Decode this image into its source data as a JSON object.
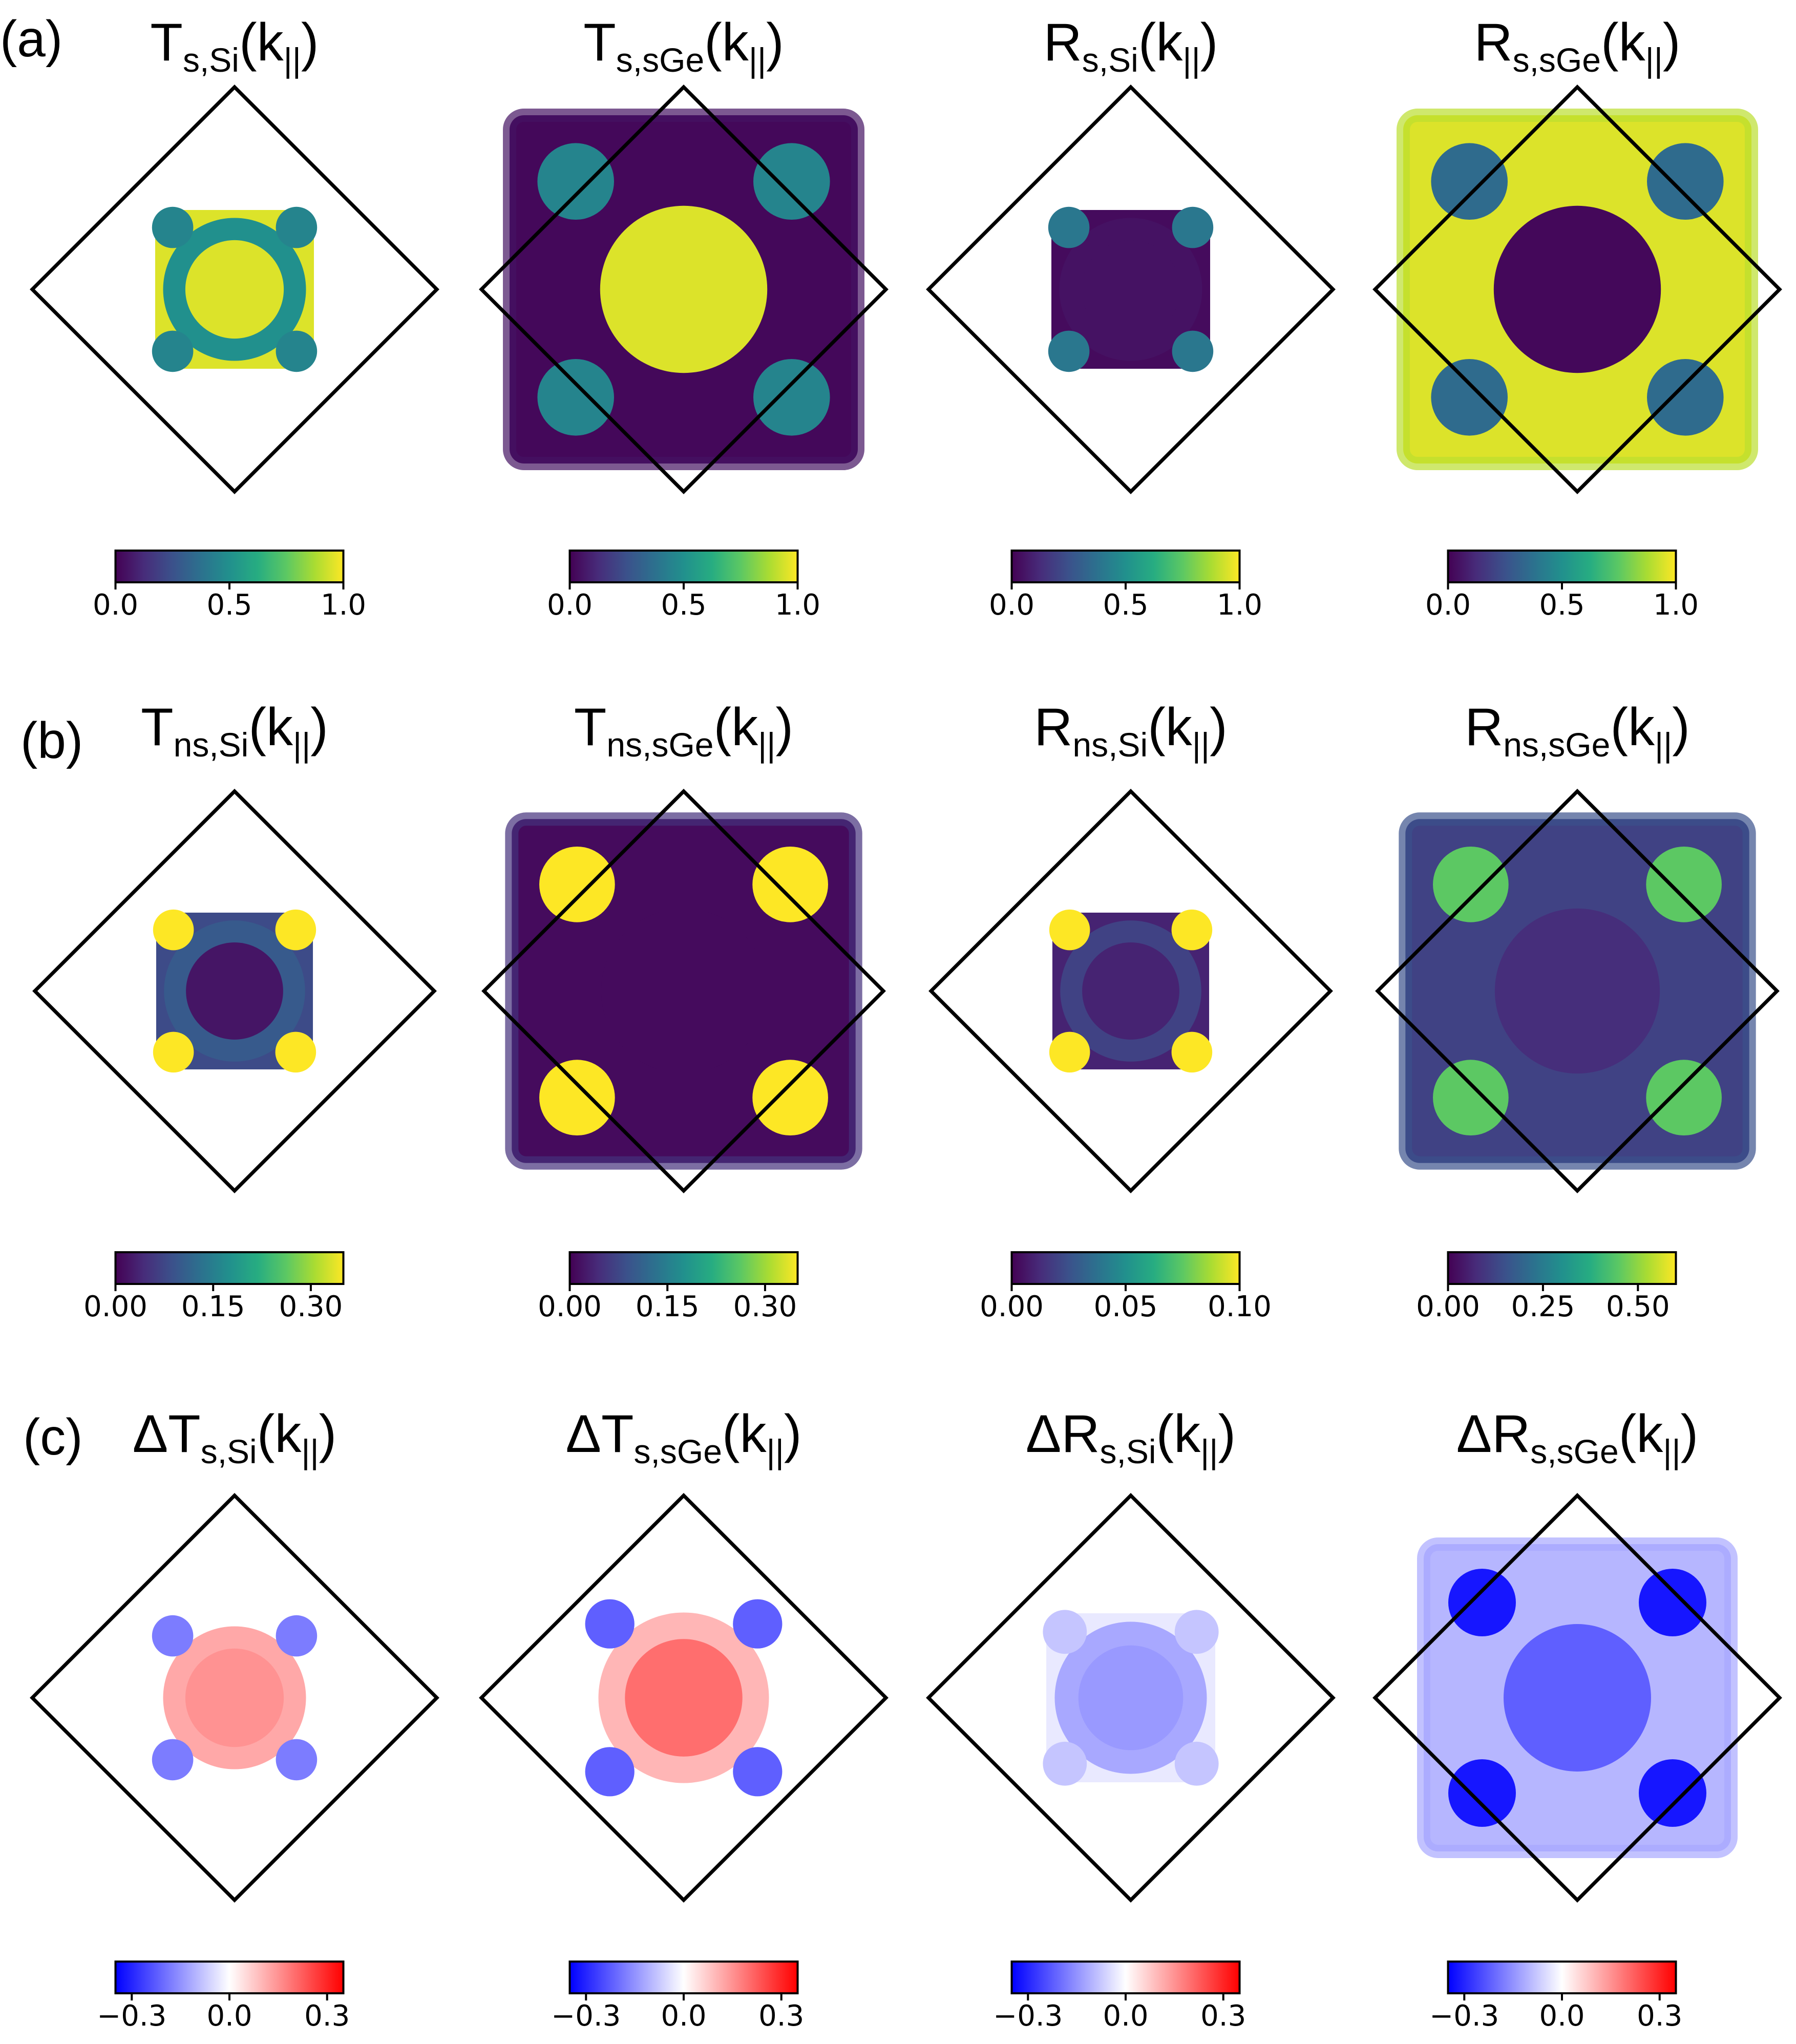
{
  "figure": {
    "row_labels": [
      "(a)",
      "(b)",
      "(c)"
    ]
  },
  "colormaps": {
    "viridis": [
      "#440154",
      "#472c7a",
      "#3b518b",
      "#2c718e",
      "#21908d",
      "#27ad81",
      "#5cc863",
      "#aadc32",
      "#fde725"
    ],
    "bwr": [
      "#0000ff",
      "#8080ff",
      "#ffffff",
      "#ff8080",
      "#ff0000"
    ]
  },
  "chart_data": [
    {
      "type": "heatmap",
      "panel": "a1",
      "title": {
        "main": "T",
        "sub": "s,Si",
        "arg": "(k",
        "par": "||",
        "close": ")"
      },
      "colormap": "viridis",
      "colorbar": {
        "range": [
          0.0,
          1.0
        ],
        "ticks": [
          "0.0",
          "0.5",
          "1.0"
        ]
      },
      "map": {
        "shape": "cross",
        "extent": 0.155,
        "bg": 0.95,
        "center": 0.95,
        "lobes": 0.45,
        "frame": 0.5
      }
    },
    {
      "type": "heatmap",
      "panel": "a2",
      "title": {
        "main": "T",
        "sub": "s,sGe",
        "arg": "(k",
        "par": "||",
        "close": ")"
      },
      "colormap": "viridis",
      "colorbar": {
        "range": [
          0.0,
          1.0
        ],
        "ticks": [
          "0.0",
          "0.5",
          "1.0"
        ]
      },
      "map": {
        "shape": "square",
        "extent": 0.34,
        "bg": 0.02,
        "center": 0.95,
        "lobes": 0.45,
        "frame": 0.05
      }
    },
    {
      "type": "heatmap",
      "panel": "a3",
      "title": {
        "main": "R",
        "sub": "s,Si",
        "arg": "(k",
        "par": "||",
        "close": ")"
      },
      "colormap": "viridis",
      "colorbar": {
        "range": [
          0.0,
          1.0
        ],
        "ticks": [
          "0.0",
          "0.5",
          "1.0"
        ]
      },
      "map": {
        "shape": "cross",
        "extent": 0.155,
        "bg": 0.03,
        "center": 0.05,
        "lobes": 0.4,
        "frame": 0.05
      }
    },
    {
      "type": "heatmap",
      "panel": "a4",
      "title": {
        "main": "R",
        "sub": "s,sGe",
        "arg": "(k",
        "par": "||",
        "close": ")"
      },
      "colormap": "viridis",
      "colorbar": {
        "range": [
          0.0,
          1.0
        ],
        "ticks": [
          "0.0",
          "0.5",
          "1.0"
        ]
      },
      "map": {
        "shape": "square",
        "extent": 0.34,
        "bg": 0.95,
        "center": 0.02,
        "lobes": 0.35,
        "frame": 0.9
      }
    },
    {
      "type": "heatmap",
      "panel": "b1",
      "title": {
        "main": "T",
        "sub": "ns,Si",
        "arg": "(k",
        "par": "||",
        "close": ")"
      },
      "colormap": "viridis",
      "colorbar": {
        "range": [
          0.0,
          0.35
        ],
        "ticks": [
          "0.00",
          "0.15",
          "0.30"
        ]
      },
      "map": {
        "shape": "cross",
        "extent": 0.155,
        "bg": 0.08,
        "center": 0.02,
        "lobes": 0.55,
        "frame": 0.1
      }
    },
    {
      "type": "heatmap",
      "panel": "b2",
      "title": {
        "main": "T",
        "sub": "ns,sGe",
        "arg": "(k",
        "par": "||",
        "close": ")"
      },
      "colormap": "viridis",
      "colorbar": {
        "range": [
          0.0,
          0.35
        ],
        "ticks": [
          "0.00",
          "0.15",
          "0.30"
        ]
      },
      "map": {
        "shape": "square",
        "extent": 0.34,
        "bg": 0.01,
        "center": 0.01,
        "lobes": 0.45,
        "frame": 0.05
      }
    },
    {
      "type": "heatmap",
      "panel": "b3",
      "title": {
        "main": "R",
        "sub": "ns,Si",
        "arg": "(k",
        "par": "||",
        "close": ")"
      },
      "colormap": "viridis",
      "colorbar": {
        "range": [
          0.0,
          0.1
        ],
        "ticks": [
          "0.00",
          "0.05",
          "0.10"
        ]
      },
      "map": {
        "shape": "cross",
        "extent": 0.155,
        "bg": 0.01,
        "center": 0.01,
        "lobes": 0.7,
        "frame": 0.02
      }
    },
    {
      "type": "heatmap",
      "panel": "b4",
      "title": {
        "main": "R",
        "sub": "ns,sGe",
        "arg": "(k",
        "par": "||",
        "close": ")"
      },
      "colormap": "viridis",
      "colorbar": {
        "range": [
          0.0,
          0.6
        ],
        "ticks": [
          "0.00",
          "0.25",
          "0.50"
        ]
      },
      "map": {
        "shape": "square",
        "extent": 0.34,
        "bg": 0.12,
        "center": 0.08,
        "lobes": 0.45,
        "frame": 0.15
      }
    },
    {
      "type": "heatmap",
      "panel": "c1",
      "title": {
        "main": "ΔT",
        "sub": "s,Si",
        "arg": "(k",
        "par": "||",
        "close": ")"
      },
      "colormap": "bwr",
      "colorbar": {
        "range": [
          -0.35,
          0.35
        ],
        "ticks": [
          "−0.3",
          "0.0",
          "0.3"
        ]
      },
      "map": {
        "shape": "cross",
        "extent": 0.155,
        "bg": 0.0,
        "center": 0.15,
        "lobes": -0.18,
        "frame": 0.12
      }
    },
    {
      "type": "heatmap",
      "panel": "c2",
      "title": {
        "main": "ΔT",
        "sub": "s,sGe",
        "arg": "(k",
        "par": "||",
        "close": ")"
      },
      "colormap": "bwr",
      "colorbar": {
        "range": [
          -0.35,
          0.35
        ],
        "ticks": [
          "−0.3",
          "0.0",
          "0.3"
        ]
      },
      "map": {
        "shape": "cross",
        "extent": 0.185,
        "bg": 0.0,
        "center": 0.2,
        "lobes": -0.22,
        "frame": 0.1
      }
    },
    {
      "type": "heatmap",
      "panel": "c3",
      "title": {
        "main": "ΔR",
        "sub": "s,Si",
        "arg": "(k",
        "par": "||",
        "close": ")"
      },
      "colormap": "bwr",
      "colorbar": {
        "range": [
          -0.35,
          0.35
        ],
        "ticks": [
          "−0.3",
          "0.0",
          "0.3"
        ]
      },
      "map": {
        "shape": "cross",
        "extent": 0.165,
        "bg": -0.03,
        "center": -0.14,
        "lobes": -0.08,
        "frame": -0.12
      }
    },
    {
      "type": "heatmap",
      "panel": "c4",
      "title": {
        "main": "ΔR",
        "sub": "s,sGe",
        "arg": "(k",
        "par": "||",
        "close": ")"
      },
      "colormap": "bwr",
      "colorbar": {
        "range": [
          -0.35,
          0.35
        ],
        "ticks": [
          "−0.3",
          "0.0",
          "0.3"
        ]
      },
      "map": {
        "shape": "square",
        "extent": 0.3,
        "bg": -0.1,
        "center": -0.22,
        "lobes": -0.32,
        "frame": -0.12
      }
    }
  ]
}
